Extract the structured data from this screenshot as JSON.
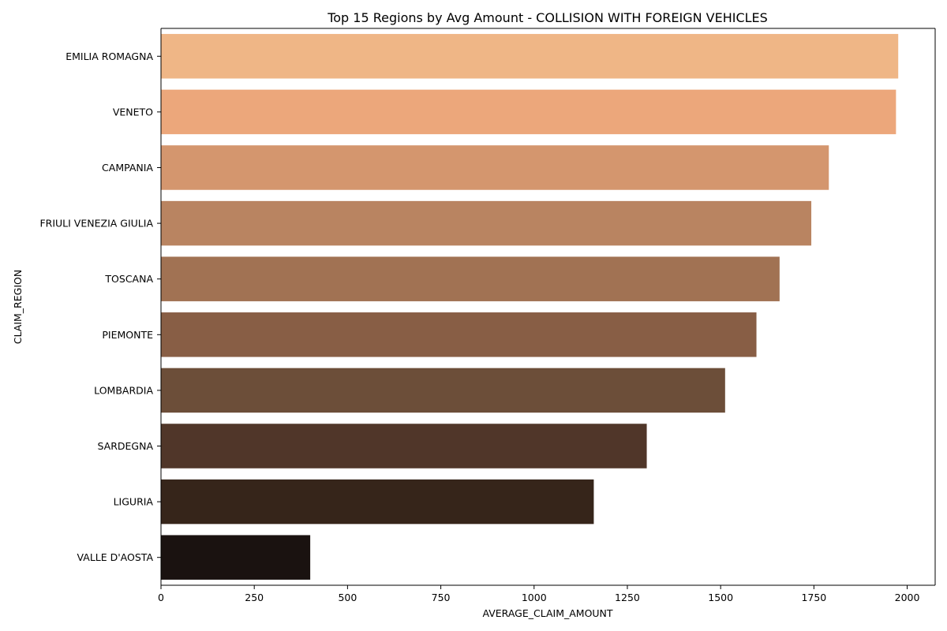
{
  "chart_data": {
    "type": "bar",
    "orientation": "horizontal",
    "title": "Top 15 Regions by Avg Amount - COLLISION WITH FOREIGN VEHICLES",
    "xlabel": "AVERAGE_CLAIM_AMOUNT",
    "ylabel": "CLAIM_REGION",
    "xlim": [
      0,
      2075
    ],
    "xticks": [
      0,
      250,
      500,
      750,
      1000,
      1250,
      1500,
      1750,
      2000
    ],
    "grid": false,
    "categories": [
      "EMILIA ROMAGNA",
      "VENETO",
      "CAMPANIA",
      "FRIULI VENEZIA GIULIA",
      "TOSCANA",
      "PIEMONTE",
      "LOMBARDIA",
      "SARDEGNA",
      "LIGURIA",
      "VALLE D'AOSTA"
    ],
    "values": [
      1976,
      1970,
      1790,
      1743,
      1658,
      1596,
      1512,
      1302,
      1160,
      400
    ],
    "colors": [
      "#EFB686",
      "#ECA77B",
      "#D4966E",
      "#B98461",
      "#A17253",
      "#885E45",
      "#6C4E39",
      "#503629",
      "#36251A",
      "#1A1210"
    ]
  }
}
